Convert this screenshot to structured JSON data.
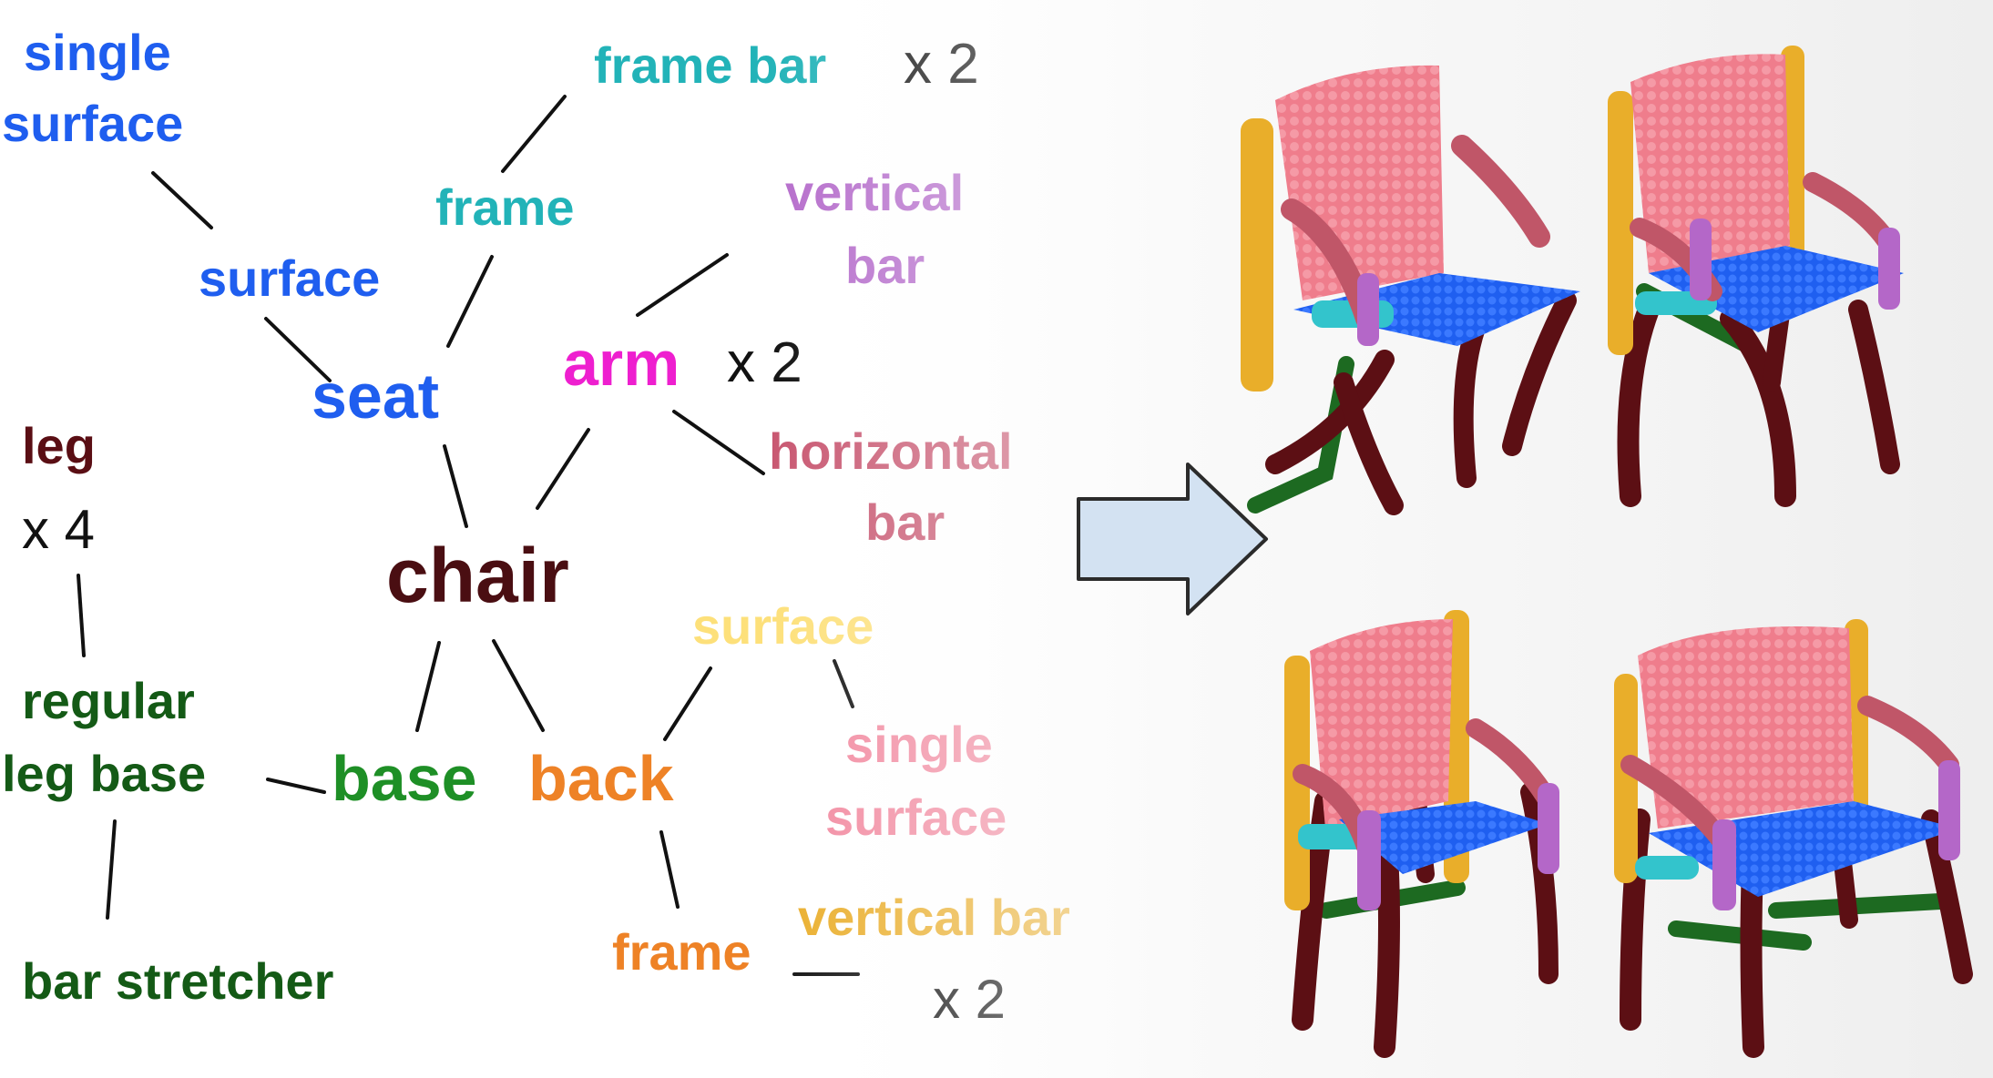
{
  "nodes": {
    "seat_single_surface": {
      "line1": "single",
      "line2": "surface",
      "color": "#1f5eef"
    },
    "seat_surface": {
      "text": "surface",
      "color": "#1f5eef"
    },
    "seat": {
      "text": "seat",
      "color": "#1f5eef"
    },
    "seat_frame": {
      "text": "frame",
      "color": "#22b3b8"
    },
    "frame_bar": {
      "text": "frame bar",
      "color": "#22b3b8",
      "mult": "x 2"
    },
    "arm": {
      "text": "arm",
      "color": "#ee1fcf",
      "mult": "x 2"
    },
    "arm_vertical_bar": {
      "line1": "vertical",
      "line2": "bar",
      "color": "#b56ccb"
    },
    "arm_horizontal_bar": {
      "line1": "horizontal",
      "line2": "bar",
      "color": "#c85670"
    },
    "chair": {
      "text": "chair",
      "color": "#4a0e12"
    },
    "leg": {
      "text": "leg",
      "color": "#5a0e14",
      "mult": "x 4"
    },
    "regular_leg_base": {
      "line1": "regular",
      "line2": "leg base",
      "color": "#145a16"
    },
    "bar_stretcher": {
      "text": "bar stretcher",
      "color": "#145a16"
    },
    "base": {
      "text": "base",
      "color": "#1e8f26"
    },
    "back": {
      "text": "back",
      "color": "#ee8226"
    },
    "back_surface": {
      "text": "surface",
      "color": "#fde07a"
    },
    "back_single_surface": {
      "line1": "single",
      "line2": "surface",
      "color": "#f28aa0"
    },
    "back_frame": {
      "text": "frame",
      "color": "#ee8226"
    },
    "back_vertical_bar": {
      "text": "vertical bar",
      "color": "#eaae2b",
      "mult": "x 2"
    }
  },
  "part_colors": {
    "back_surface": "#ef7d8c",
    "back_frame_bar": "#e9ae2a",
    "seat_surface": "#1f5ff0",
    "seat_frame": "#33c4cc",
    "arm_vertical": "#b467c8",
    "arm_horizontal": "#c05668",
    "leg": "#5c0f14",
    "stretcher": "#1d6a21"
  },
  "arrow": {
    "fill": "#d3e2f2",
    "stroke": "#2b2b2b"
  }
}
